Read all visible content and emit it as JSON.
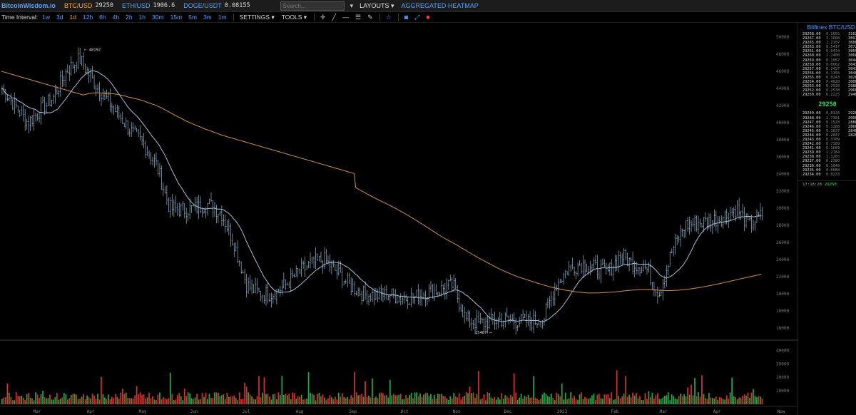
{
  "header": {
    "brand": "BitcoinWisdom.io",
    "tickers": [
      {
        "pair": "BTC/USD",
        "price": "29250",
        "color": "#ffa500"
      },
      {
        "pair": "ETH/USD",
        "price": "1906.6",
        "color": "#4ea3ff"
      },
      {
        "pair": "DOGE/USDT",
        "price": "0.08155",
        "color": "#4ea3ff"
      }
    ],
    "search_placeholder": "Search...",
    "layouts_label": "LAYOUTS",
    "heatmap_label": "AGGREGATED HEATMAP",
    "icons": [
      "dropdown-icon",
      "line-icon",
      "horizontal-line-icon",
      "fib-icon",
      "pencil-icon",
      "star-icon",
      "camera-icon",
      "fullscreen-icon",
      "delete-icon"
    ]
  },
  "toolbar": {
    "time_interval_label": "Time Interval:",
    "intervals": [
      "1w",
      "3d",
      "1d",
      "12h",
      "6h",
      "4h",
      "2h",
      "1h",
      "30m",
      "15m",
      "5m",
      "3m",
      "1m"
    ],
    "active_interval": "1d",
    "settings_label": "SETTINGS",
    "tools_label": "TOOLS"
  },
  "chart_data": {
    "type": "candlestick",
    "x_labels": [
      "Mar",
      "Apr",
      "May",
      "Jun",
      "Jul",
      "Aug",
      "Sep",
      "Oct",
      "Nov",
      "Dec",
      "2023",
      "Feb",
      "Mar",
      "Apr",
      "Now"
    ],
    "y_ticks": [
      16000,
      18000,
      20000,
      22000,
      24000,
      26000,
      28000,
      30000,
      32000,
      34000,
      36000,
      38000,
      40000,
      42000,
      44000,
      46000,
      48000,
      50000
    ],
    "ylim": [
      15000,
      51000
    ],
    "high_annotation": "48192",
    "low_annotation": "15487",
    "close_series": [
      44000,
      42000,
      40000,
      41500,
      43000,
      46000,
      47500,
      45000,
      43000,
      41000,
      39000,
      37500,
      35000,
      30000,
      29800,
      30000,
      30500,
      29500,
      26000,
      21000,
      20000,
      20000,
      21000,
      22500,
      23500,
      24000,
      22500,
      21000,
      20000,
      19800,
      20000,
      19500,
      19600,
      20200,
      20500,
      21000,
      17000,
      16500,
      16800,
      17000,
      16800,
      16700,
      17000,
      21000,
      23000,
      23500,
      23000,
      22500,
      24500,
      23500,
      23000,
      20000,
      25000,
      28000,
      28300,
      28500,
      29000,
      30000,
      28000,
      29250
    ],
    "ma_fast_color": "#a9bfd8",
    "ma_slow_color": "#c7925b",
    "volume_ticks": [
      10000,
      20000,
      30000,
      40000
    ],
    "volume_max": 45000,
    "up_color": "#1ea84a",
    "down_color": "#d9302a"
  },
  "orderbook": {
    "title": "Bitfinex BTC/USD",
    "asks": [
      [
        "29268.00",
        "0.1055",
        "3102"
      ],
      [
        "29267.00",
        "3.1608",
        "3091"
      ],
      [
        "29265.00",
        "1.2107",
        "3088"
      ],
      [
        "29263.00",
        "0.5417",
        "3072"
      ],
      [
        "29261.00",
        "0.0434",
        "3069"
      ],
      [
        "29260.00",
        "2.2400",
        "3068"
      ],
      [
        "29259.00",
        "0.1057",
        "3044"
      ],
      [
        "29258.00",
        "0.0062",
        "3043"
      ],
      [
        "29257.00",
        "0.2437",
        "3043"
      ],
      [
        "29256.00",
        "0.1156",
        "3040"
      ],
      [
        "29255.00",
        "0.0243",
        "3020"
      ],
      [
        "29254.00",
        "0.4028",
        "3000"
      ],
      [
        "29253.00",
        "0.2938",
        "2980"
      ],
      [
        "29252.00",
        "0.2538",
        "2960"
      ],
      [
        "29250.00",
        "6.2225",
        "2940"
      ]
    ],
    "last_price": "29250",
    "bids": [
      [
        "29249.00",
        "0.0326",
        "2920"
      ],
      [
        "29248.00",
        "1.7381",
        "2900"
      ],
      [
        "29247.00",
        "0.1528",
        "2880"
      ],
      [
        "29246.00",
        "0.1288",
        "2860"
      ],
      [
        "29245.00",
        "0.1837",
        "2840"
      ],
      [
        "29244.00",
        "0.2847",
        "2820"
      ],
      [
        "29243.00",
        "0.3709",
        ""
      ],
      [
        "29242.00",
        "0.7389",
        ""
      ],
      [
        "29241.00",
        "0.1089",
        ""
      ],
      [
        "29239.00",
        "1.2784",
        ""
      ],
      [
        "29238.00",
        "1.1265",
        ""
      ],
      [
        "29237.00",
        "0.2380",
        ""
      ],
      [
        "29236.00",
        "0.1048",
        ""
      ],
      [
        "29235.00",
        "0.0088",
        ""
      ],
      [
        "29234.00",
        "0.0233",
        ""
      ]
    ],
    "last_trade_time": "17:18:28",
    "last_trade_price": "29250"
  }
}
